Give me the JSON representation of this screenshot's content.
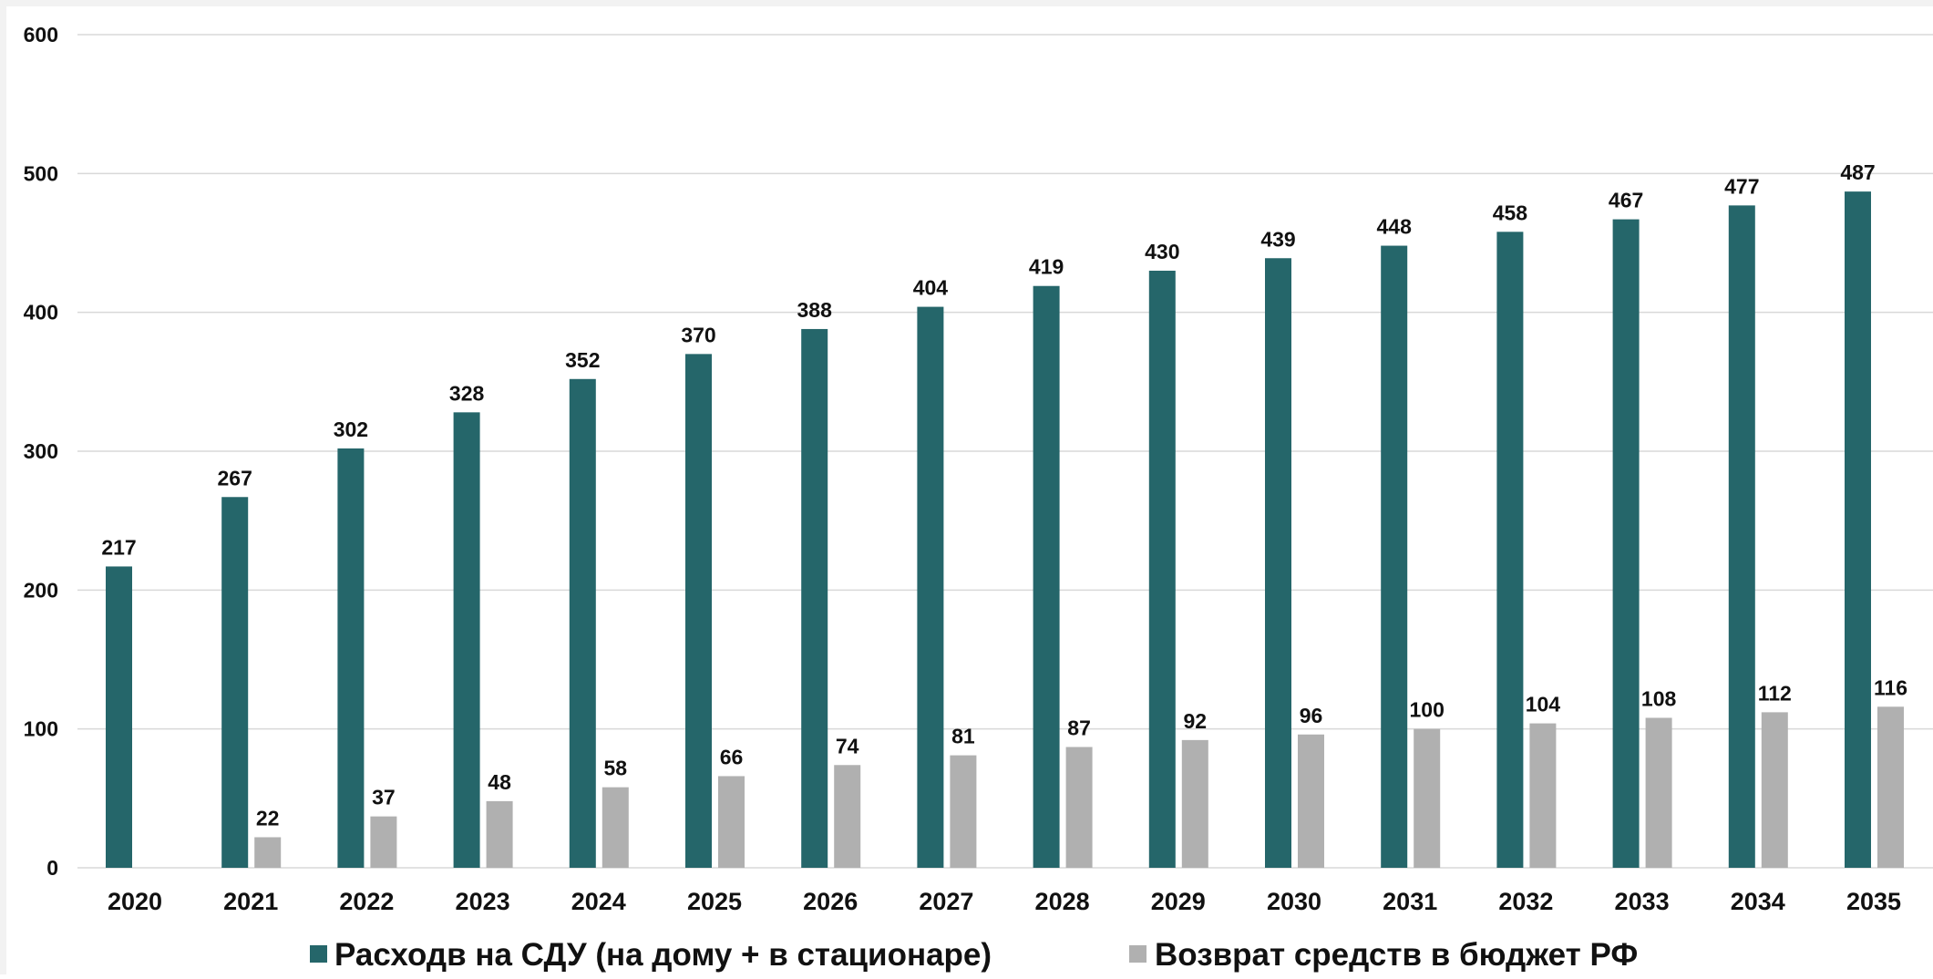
{
  "chart_data": {
    "type": "bar",
    "title": "",
    "xlabel": "",
    "ylabel": "",
    "ylim": [
      0,
      600
    ],
    "yticks": [
      0,
      100,
      200,
      300,
      400,
      500,
      600
    ],
    "grid": true,
    "legend_position": "bottom",
    "categories": [
      "2020",
      "2021",
      "2022",
      "2023",
      "2024",
      "2025",
      "2026",
      "2027",
      "2028",
      "2029",
      "2030",
      "2031",
      "2032",
      "2033",
      "2034",
      "2035"
    ],
    "series": [
      {
        "name": "Расходв на СДУ (на дому + в стационаре)",
        "color": "#25666a",
        "values": [
          217,
          267,
          302,
          328,
          352,
          370,
          388,
          404,
          419,
          430,
          439,
          448,
          458,
          467,
          477,
          487
        ]
      },
      {
        "name": "Возврат средств в бюджет РФ",
        "color": "#b0b0b0",
        "values": [
          null,
          22,
          37,
          48,
          58,
          66,
          74,
          81,
          87,
          92,
          96,
          100,
          104,
          108,
          112,
          116
        ]
      }
    ]
  }
}
